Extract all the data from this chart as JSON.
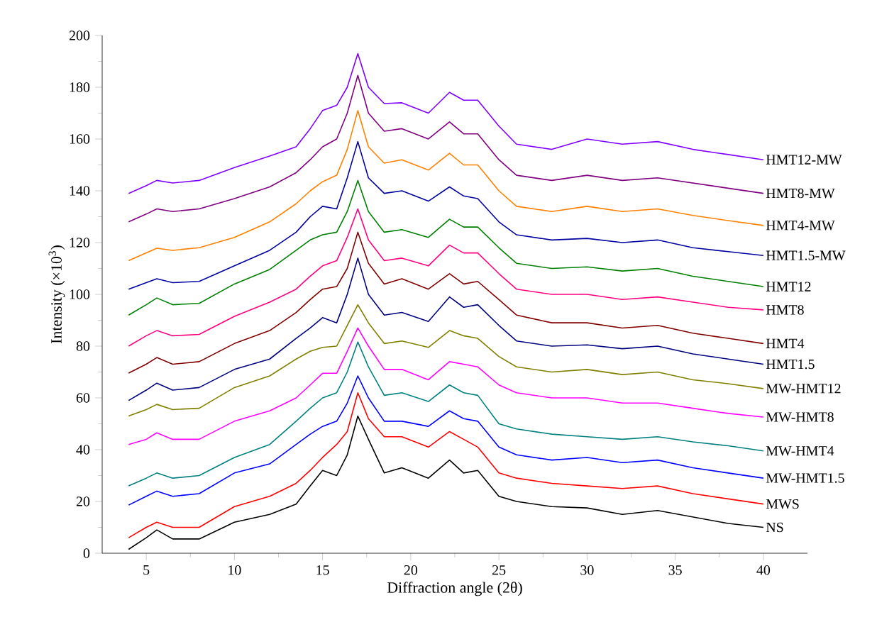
{
  "chart_data": {
    "type": "line",
    "xlabel": "Diffraction angle (2θ)",
    "ylabel": "Intensity (×10$^{3}$)",
    "x": [
      4,
      5,
      5.6,
      6.5,
      8,
      10,
      12,
      13.5,
      14.3,
      15,
      15.8,
      16.4,
      17,
      17.6,
      18.5,
      19.5,
      21,
      22.2,
      23,
      23.8,
      25,
      26,
      28,
      30,
      32,
      34,
      36,
      38,
      40
    ],
    "xlim": [
      2.5,
      42.5
    ],
    "xticks": [
      5,
      10,
      15,
      20,
      25,
      30,
      35,
      40
    ],
    "ylim": [
      0,
      200
    ],
    "yticks": [
      0,
      20,
      40,
      60,
      80,
      100,
      120,
      140,
      160,
      180,
      200
    ],
    "series": [
      {
        "name": "NS",
        "color": "#000000",
        "values": [
          1.5,
          6,
          9,
          5.5,
          5.5,
          12,
          15,
          19,
          26,
          32,
          30,
          38,
          53,
          44,
          31,
          33,
          29,
          36,
          31,
          32,
          22,
          20,
          18,
          17.5,
          15,
          16.5,
          14,
          11.5,
          10
        ]
      },
      {
        "name": "MWS",
        "color": "#ff0000",
        "values": [
          6,
          10,
          12,
          10,
          10,
          18,
          22,
          27,
          32,
          37,
          42,
          47,
          62,
          52,
          45,
          45,
          41,
          47,
          44,
          41,
          31,
          29,
          27,
          26,
          25,
          26,
          23,
          21,
          19
        ]
      },
      {
        "name": "MW-HMT1.5",
        "color": "#0000ff",
        "values": [
          18.6,
          22,
          24,
          22,
          23,
          31,
          34.5,
          42,
          46,
          49,
          51,
          58,
          68.5,
          60,
          51,
          51,
          49,
          55,
          52,
          51,
          41,
          38,
          36,
          37,
          35,
          36,
          33,
          31,
          29
        ]
      },
      {
        "name": "MW-HMT4",
        "color": "#008080",
        "values": [
          26,
          29,
          31,
          29,
          30,
          37,
          42,
          51,
          56,
          60,
          62,
          70,
          81.6,
          72,
          61,
          62,
          58.6,
          65,
          62,
          61,
          50,
          48,
          46,
          45,
          44,
          45,
          43,
          41.5,
          39.5
        ]
      },
      {
        "name": "MW-HMT8",
        "color": "#ff00ff",
        "values": [
          42,
          44,
          46.5,
          44,
          44,
          51,
          55,
          60,
          65,
          69.5,
          69.5,
          78,
          87,
          80,
          71,
          71,
          67,
          74,
          73,
          72,
          65,
          62,
          60,
          60,
          58,
          58,
          56,
          54,
          52.6
        ]
      },
      {
        "name": "MW-HMT12",
        "color": "#808000",
        "values": [
          53,
          55.5,
          57.5,
          55.5,
          56,
          64,
          68.5,
          75,
          78,
          79.5,
          80,
          88,
          96,
          89,
          81,
          82,
          79.5,
          86,
          84,
          83,
          76,
          72,
          70,
          71,
          69,
          70,
          67,
          65.5,
          63.6
        ]
      },
      {
        "name": "HMT1.5",
        "color": "#000080",
        "values": [
          59,
          63,
          65.7,
          63,
          64,
          71,
          75,
          83,
          87,
          91,
          89,
          100,
          114,
          100,
          92,
          93,
          89.5,
          99,
          95,
          96,
          88,
          82,
          80,
          80.5,
          79,
          80,
          77,
          75,
          73
        ]
      },
      {
        "name": "HMT4",
        "color": "#800000",
        "values": [
          69.6,
          73,
          75.6,
          73,
          74,
          81,
          86,
          93,
          98,
          102,
          103,
          110,
          124,
          112,
          104,
          106,
          102,
          108,
          104,
          105,
          98,
          92,
          89,
          89,
          87,
          88,
          85,
          83,
          81
        ]
      },
      {
        "name": "HMT8",
        "color": "#ff0080",
        "values": [
          80,
          84,
          86,
          84,
          84.5,
          91.5,
          97,
          102,
          107,
          111,
          113,
          122,
          133,
          121,
          113,
          114,
          111,
          119,
          116,
          116,
          108,
          102,
          100,
          100,
          98,
          99,
          97,
          95,
          94
        ]
      },
      {
        "name": "HMT12",
        "color": "#008000",
        "values": [
          92,
          96,
          98.6,
          96,
          96.5,
          104,
          109.6,
          117,
          121,
          123,
          124,
          132,
          144,
          132,
          124,
          125,
          122,
          129,
          126,
          126,
          118,
          112,
          110,
          110.6,
          109,
          110,
          107,
          105,
          103
        ]
      },
      {
        "name": "HMT1.5-MW",
        "color": "#0000a0",
        "values": [
          102,
          104.5,
          106,
          104.5,
          105,
          111,
          117,
          124,
          130,
          134,
          133,
          145,
          159,
          145,
          139,
          140,
          136,
          141.5,
          138,
          137,
          128,
          123,
          121,
          121.6,
          120,
          121,
          118,
          116.5,
          115
        ]
      },
      {
        "name": "HMT4-MW",
        "color": "#ff8000",
        "values": [
          113,
          116,
          117.8,
          117,
          118,
          122,
          128,
          135,
          140,
          143.5,
          146,
          156,
          171,
          157,
          150.7,
          152,
          148,
          154.5,
          150,
          150,
          140,
          134,
          132,
          134,
          132,
          133,
          130.5,
          128.5,
          126.6
        ]
      },
      {
        "name": "HMT8-MW",
        "color": "#800080",
        "values": [
          128,
          131,
          133,
          132,
          133,
          137,
          141.5,
          147,
          152,
          157,
          160,
          170,
          184.6,
          170,
          163,
          164,
          160,
          166.6,
          162,
          162,
          152,
          146,
          144,
          146,
          144,
          145,
          143,
          141,
          139
        ]
      },
      {
        "name": "HMT12-MW",
        "color": "#8000ff",
        "values": [
          139,
          142,
          144,
          143,
          144,
          149,
          153.4,
          157,
          164,
          171,
          173,
          180,
          193,
          180,
          173.7,
          174,
          170,
          178,
          175,
          175,
          165,
          158,
          156,
          160,
          158,
          159,
          156,
          154,
          152
        ]
      }
    ]
  }
}
